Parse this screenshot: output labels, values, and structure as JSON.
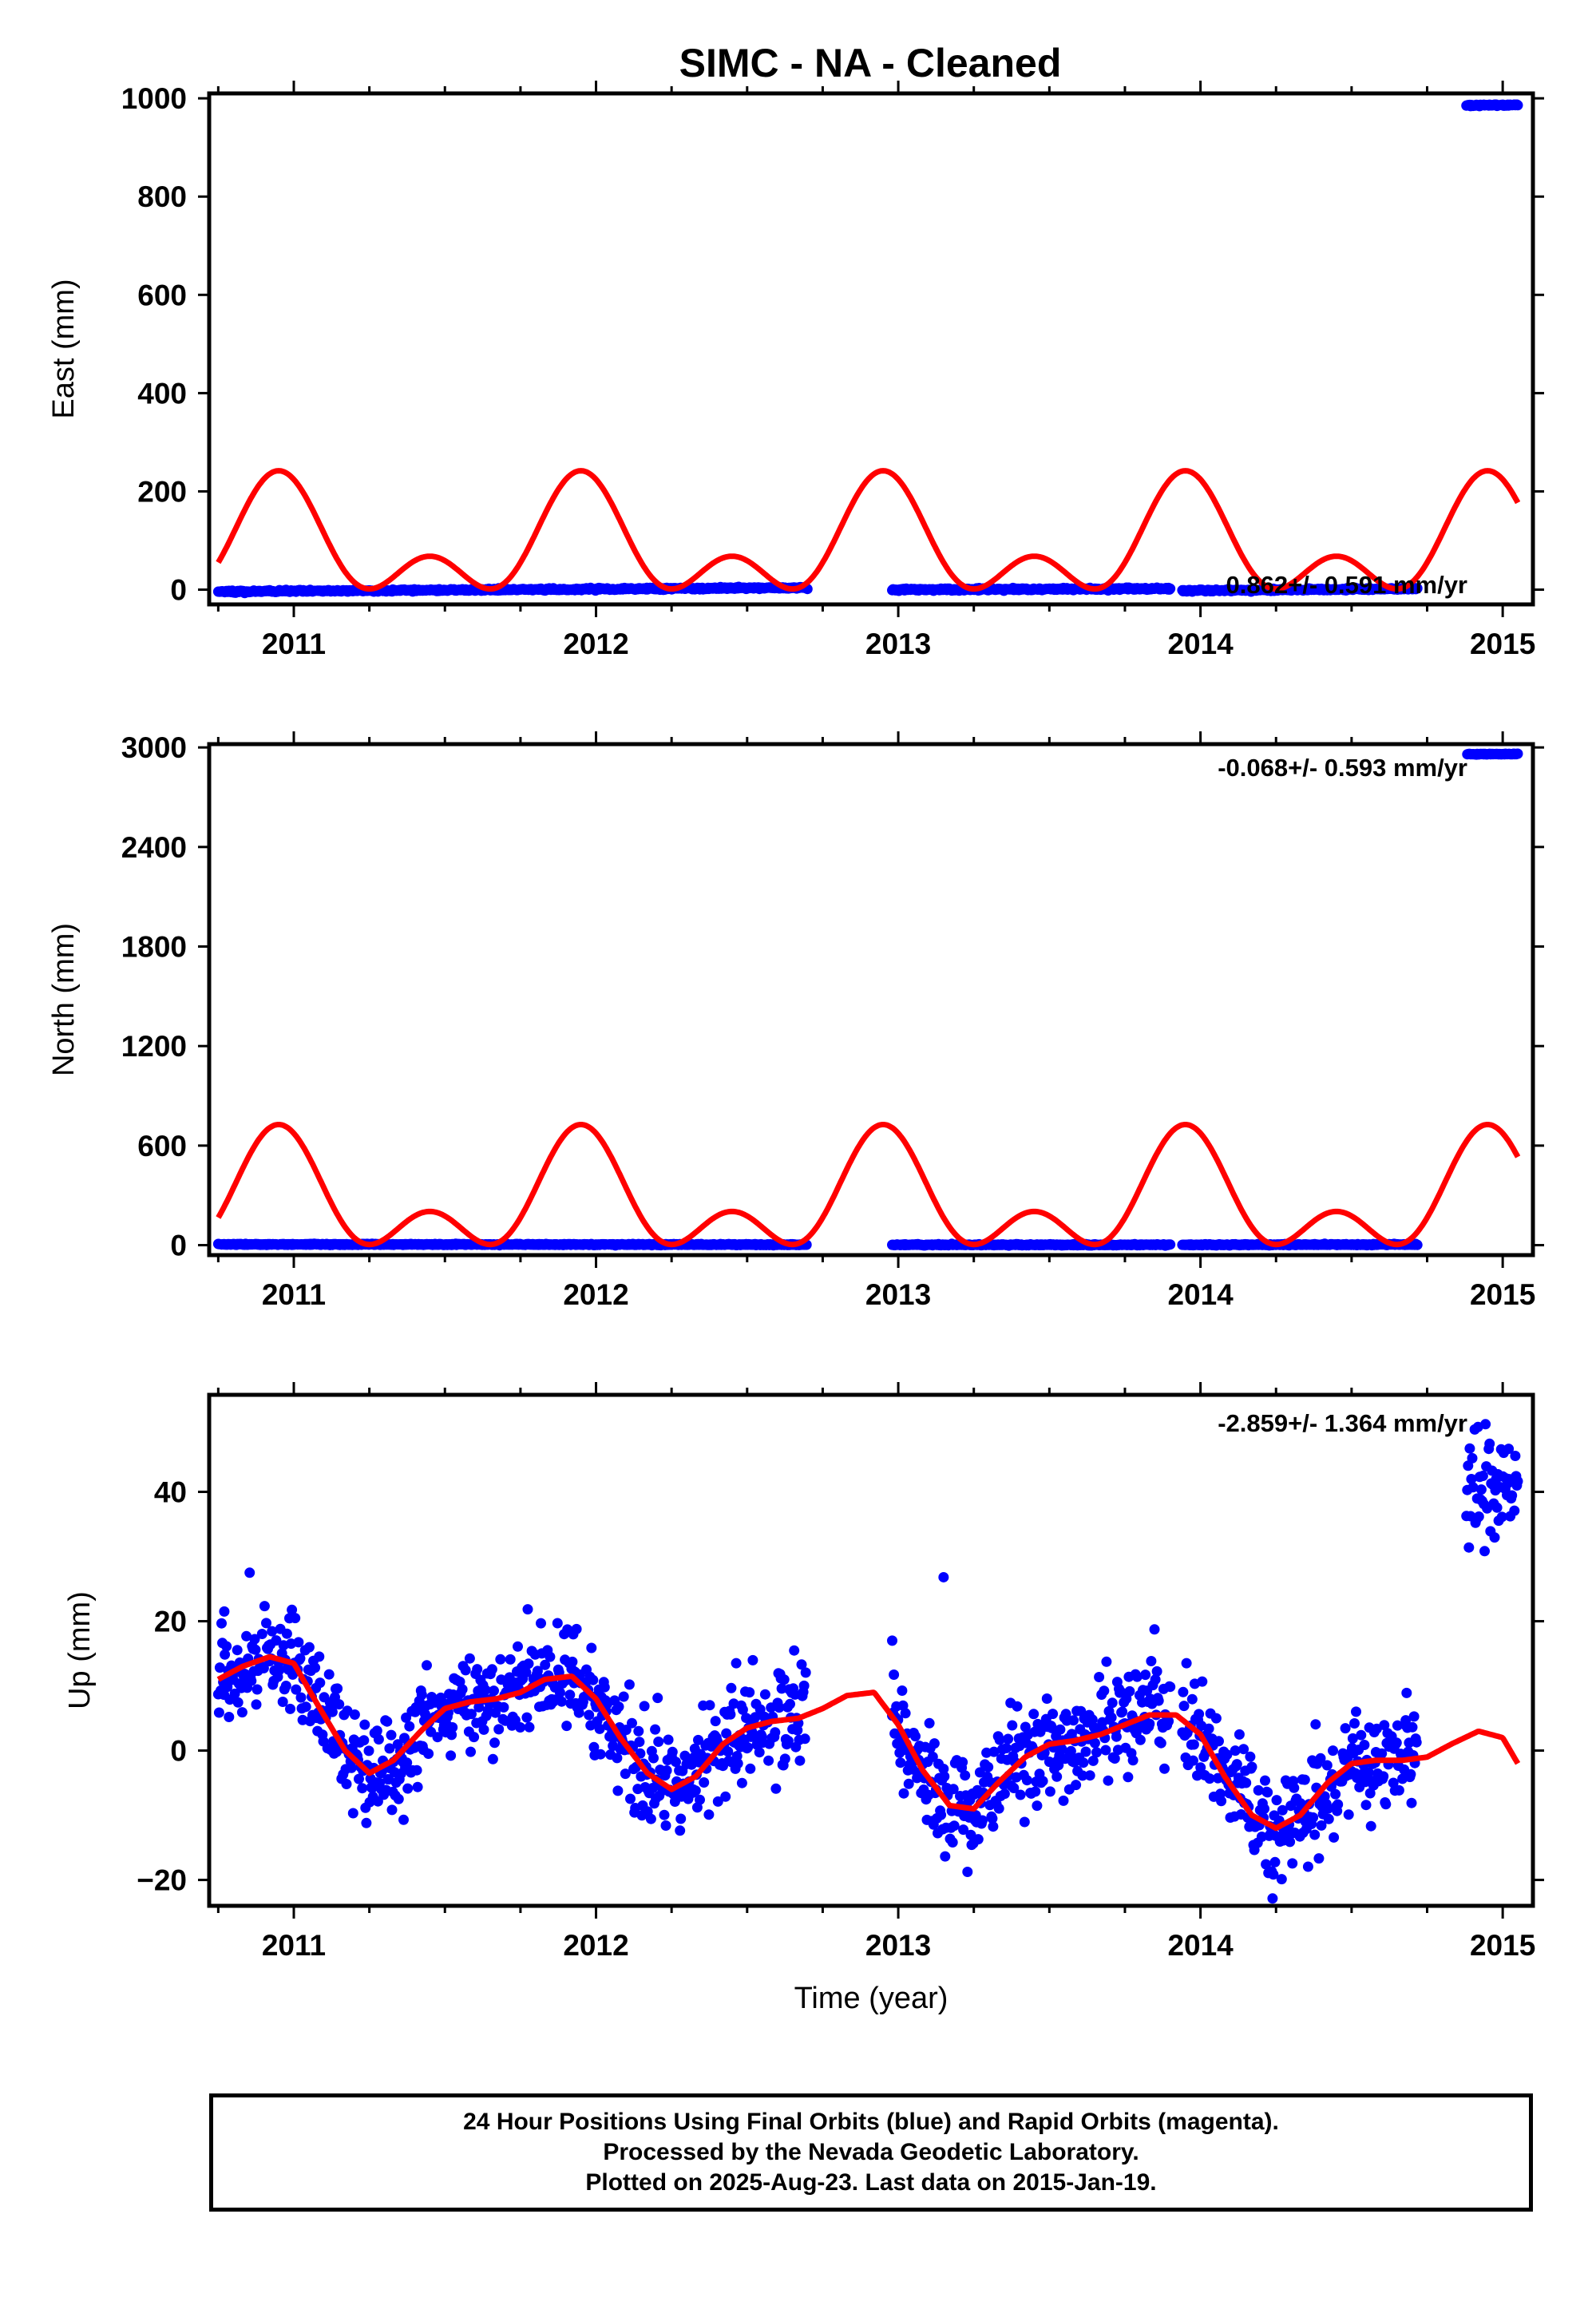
{
  "title": "SIMC  - NA - Cleaned",
  "colors": {
    "data": "#0000ff",
    "model": "#ff0000",
    "frame": "#000000"
  },
  "chart_data": [
    {
      "type": "scatter",
      "panel": "east",
      "ylabel": "East (mm)",
      "xlabel": "",
      "xlim": [
        2010.72,
        2015.1
      ],
      "ylim": [
        -30,
        1010
      ],
      "xticks": [
        2011,
        2012,
        2013,
        2014,
        2015
      ],
      "yticks": [
        0,
        200,
        400,
        600,
        800,
        1000
      ],
      "rate_label": "0.862+/- 0.591 mm/yr",
      "segments": [
        {
          "t0": 2010.75,
          "t1": 2012.7,
          "y0": -4,
          "y1": 4,
          "noise": 2.5
        },
        {
          "t0": 2012.98,
          "t1": 2013.9,
          "y0": 0,
          "y1": 2,
          "noise": 2.5
        },
        {
          "t0": 2013.94,
          "t1": 2014.72,
          "y0": -2,
          "y1": 2,
          "noise": 2.5
        },
        {
          "t0": 2014.88,
          "t1": 2015.05,
          "y0": 986,
          "y1": 986,
          "noise": 2
        }
      ],
      "model": {
        "mean": 85,
        "annual_amp": 87,
        "semi_amp": 70,
        "phase_peak": 0.95
      }
    },
    {
      "type": "scatter",
      "panel": "north",
      "ylabel": "North (mm)",
      "xlabel": "",
      "xlim": [
        2010.72,
        2015.1
      ],
      "ylim": [
        -60,
        3020
      ],
      "xticks": [
        2011,
        2012,
        2013,
        2014,
        2015
      ],
      "yticks": [
        0,
        600,
        1200,
        1800,
        2400,
        3000
      ],
      "rate_label": "-0.068+/- 0.593 mm/yr",
      "segments": [
        {
          "t0": 2010.75,
          "t1": 2012.7,
          "y0": 5,
          "y1": 3,
          "noise": 4
        },
        {
          "t0": 2012.98,
          "t1": 2013.9,
          "y0": 2,
          "y1": 2,
          "noise": 4
        },
        {
          "t0": 2013.94,
          "t1": 2014.72,
          "y0": 2,
          "y1": 4,
          "noise": 4
        },
        {
          "t0": 2014.88,
          "t1": 2015.05,
          "y0": 2960,
          "y1": 2960,
          "noise": 3
        }
      ],
      "model": {
        "mean": 255,
        "annual_amp": 262,
        "semi_amp": 210,
        "phase_peak": 0.95
      }
    },
    {
      "type": "scatter",
      "panel": "up",
      "ylabel": "Up (mm)",
      "xlabel": "Time (year)",
      "xlim": [
        2010.72,
        2015.1
      ],
      "ylim": [
        -24,
        55
      ],
      "xticks": [
        2011,
        2012,
        2013,
        2014,
        2015
      ],
      "yticks": [
        -20,
        0,
        20,
        40
      ],
      "rate_label": "-2.859+/- 1.364 mm/yr",
      "segments": [
        {
          "t0": 2010.75,
          "t1": 2012.7,
          "noise": 4
        },
        {
          "t0": 2012.98,
          "t1": 2013.9,
          "noise": 4
        },
        {
          "t0": 2013.94,
          "t1": 2014.72,
          "noise": 4
        },
        {
          "t0": 2014.88,
          "t1": 2015.05,
          "offset": 40,
          "noise": 4.5
        }
      ],
      "model_curve": {
        "t": [
          2010.75,
          2010.83,
          2010.92,
          2011.0,
          2011.08,
          2011.17,
          2011.25,
          2011.33,
          2011.42,
          2011.5,
          2011.58,
          2011.67,
          2011.75,
          2011.83,
          2011.92,
          2012.0,
          2012.08,
          2012.17,
          2012.25,
          2012.33,
          2012.42,
          2012.5,
          2012.58,
          2012.67,
          2012.75,
          2012.83,
          2012.92,
          2013.0,
          2013.08,
          2013.17,
          2013.25,
          2013.33,
          2013.42,
          2013.5,
          2013.58,
          2013.67,
          2013.75,
          2013.83,
          2013.92,
          2014.0,
          2014.08,
          2014.17,
          2014.25,
          2014.33,
          2014.42,
          2014.5,
          2014.58,
          2014.67,
          2014.75,
          2014.83,
          2014.92,
          2015.0,
          2015.05
        ],
        "y": [
          11,
          13,
          14.5,
          13.5,
          7,
          0,
          -3.5,
          -1.5,
          3,
          6.5,
          7.5,
          8,
          9,
          11,
          11.5,
          8,
          2,
          -3.5,
          -6,
          -4,
          1,
          3.5,
          4.5,
          5,
          6.5,
          8.5,
          9,
          4,
          -3,
          -8.5,
          -9,
          -5,
          -1,
          1,
          1.5,
          2.5,
          4,
          5.5,
          5.5,
          2.5,
          -4,
          -10,
          -12,
          -10,
          -5,
          -2,
          -1.5,
          -1.5,
          -1,
          1,
          3,
          2,
          -2
        ]
      },
      "outliers": [
        {
          "x": 2010.77,
          "y": 21.5
        },
        {
          "x": 2013.15,
          "y": 26.8
        },
        {
          "x": 2012.98,
          "y": 17
        }
      ]
    }
  ],
  "footer": {
    "line1": "24 Hour Positions Using Final Orbits (blue) and Rapid Orbits (magenta).",
    "line2": "Processed by the Nevada Geodetic Laboratory.",
    "line3": "Plotted on 2025-Aug-23. Last data on 2015-Jan-19."
  }
}
